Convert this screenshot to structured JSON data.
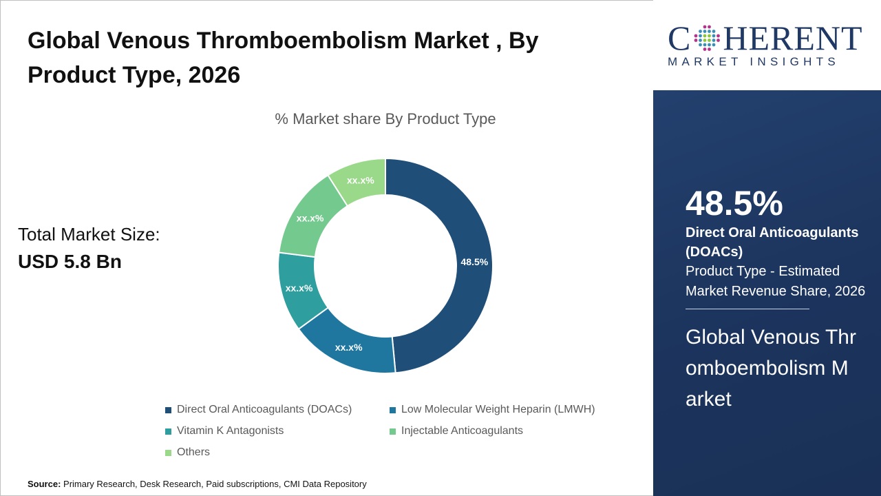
{
  "title": "Global Venous Thromboembolism Market , By Product Type, 2026",
  "total_market": {
    "label": "Total Market Size:",
    "value": "USD 5.8 Bn"
  },
  "source": {
    "label": "Source:",
    "text": "Primary Research, Desk Research, Paid subscriptions, CMI Data Repository"
  },
  "logo": {
    "text_top": "COHERENT",
    "text_bottom": "MARKET INSIGHTS"
  },
  "highlight": {
    "value": "48.5%",
    "segment": "Direct Oral Anticoagulants (DOACs)",
    "description": "Product Type - Estimated Market Revenue Share, 2026",
    "market_name": "Global Venous Thromboembolism Market"
  },
  "chart_data": {
    "type": "pie",
    "donut": true,
    "title": "% Market share By Product Type",
    "categories": [
      "Direct Oral Anticoagulants (DOACs)",
      "Low Molecular Weight Heparin (LMWH)",
      "Vitamin K Antagonists",
      "Injectable Anticoagulants",
      "Others"
    ],
    "values": [
      48.5,
      16.5,
      12,
      14,
      9
    ],
    "data_labels": [
      "48.5%",
      "xx.x%",
      "xx.x%",
      "xx.x%",
      "xx.x%"
    ],
    "colors": [
      "#1f4e79",
      "#1f77a0",
      "#2e9e9e",
      "#74c98e",
      "#9bd98a"
    ],
    "legend_position": "bottom"
  }
}
